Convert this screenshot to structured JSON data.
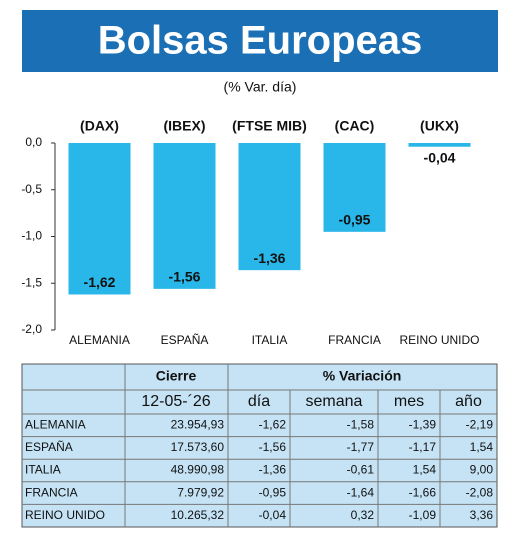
{
  "chart_data": {
    "type": "bar",
    "title": "Bolsas Europeas",
    "subtitle": "(% Var. día)",
    "categories": [
      "ALEMANIA",
      "ESPAÑA",
      "ITALIA",
      "FRANCIA",
      "REINO UNIDO"
    ],
    "tickers": [
      "(DAX)",
      "(IBEX)",
      "(FTSE MIB)",
      "(CAC)",
      "(UKX)"
    ],
    "values": [
      -1.62,
      -1.56,
      -1.36,
      -0.95,
      -0.04
    ],
    "value_labels": [
      "-1,62",
      "-1,56",
      "-1,36",
      "-0,95",
      "-0,04"
    ],
    "color": "#29b6e8",
    "ylim": [
      -2,
      0
    ],
    "yticks": [
      {
        "value": 0,
        "label": "0,0"
      },
      {
        "value": -0.5,
        "label": "-0,5"
      },
      {
        "value": -1,
        "label": "-1,0"
      },
      {
        "value": -1.5,
        "label": "-1,5"
      },
      {
        "value": -2,
        "label": "-2,0"
      }
    ]
  },
  "table": {
    "group_headers": [
      "Cierre",
      "% Variación"
    ],
    "date": "12-05-´26",
    "columns": [
      "día",
      "semana",
      "mes",
      "año"
    ],
    "rows": [
      [
        "ALEMANIA",
        "23.954,93",
        "-1,62",
        "-1,58",
        "-1,39",
        "-2,19"
      ],
      [
        "ESPAÑA",
        "17.573,60",
        "-1,56",
        "-1,77",
        "-1,17",
        "1,54"
      ],
      [
        "ITALIA",
        "48.990,98",
        "-1,36",
        "-0,61",
        "1,54",
        "9,00"
      ],
      [
        "FRANCIA",
        "7.979,92",
        "-0,95",
        "-1,64",
        "-1,66",
        "-2,08"
      ],
      [
        "REINO UNIDO",
        "10.265,32",
        "-0,04",
        "0,32",
        "-1,09",
        "3,36"
      ]
    ]
  }
}
